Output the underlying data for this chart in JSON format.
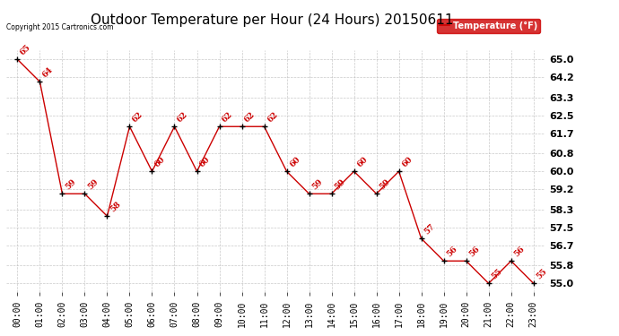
{
  "title": "Outdoor Temperature per Hour (24 Hours) 20150611",
  "copyright_text": "Copyright 2015 Cartronics.com",
  "legend_label": "Temperature (°F)",
  "hours": [
    0,
    1,
    2,
    3,
    4,
    5,
    6,
    7,
    8,
    9,
    10,
    11,
    12,
    13,
    14,
    15,
    16,
    17,
    18,
    19,
    20,
    21,
    22,
    23
  ],
  "temps": [
    65,
    64,
    59,
    59,
    58,
    62,
    60,
    62,
    60,
    62,
    62,
    62,
    60,
    59,
    59,
    60,
    59,
    60,
    57,
    56,
    56,
    55,
    56,
    55
  ],
  "xlabels": [
    "00:00",
    "01:00",
    "02:00",
    "03:00",
    "04:00",
    "05:00",
    "06:00",
    "07:00",
    "08:00",
    "09:00",
    "10:00",
    "11:00",
    "12:00",
    "13:00",
    "14:00",
    "15:00",
    "16:00",
    "17:00",
    "18:00",
    "19:00",
    "20:00",
    "21:00",
    "22:00",
    "23:00"
  ],
  "yticks": [
    55.0,
    55.8,
    56.7,
    57.5,
    58.3,
    59.2,
    60.0,
    60.8,
    61.7,
    62.5,
    63.3,
    64.2,
    65.0
  ],
  "ylim": [
    54.6,
    65.4
  ],
  "line_color": "#cc0000",
  "marker_color": "#000000",
  "bg_color": "#ffffff",
  "grid_color": "#bbbbbb",
  "title_fontsize": 11,
  "label_fontsize": 7,
  "annotation_fontsize": 6.5,
  "legend_bg": "#cc0000",
  "legend_text_color": "#ffffff"
}
